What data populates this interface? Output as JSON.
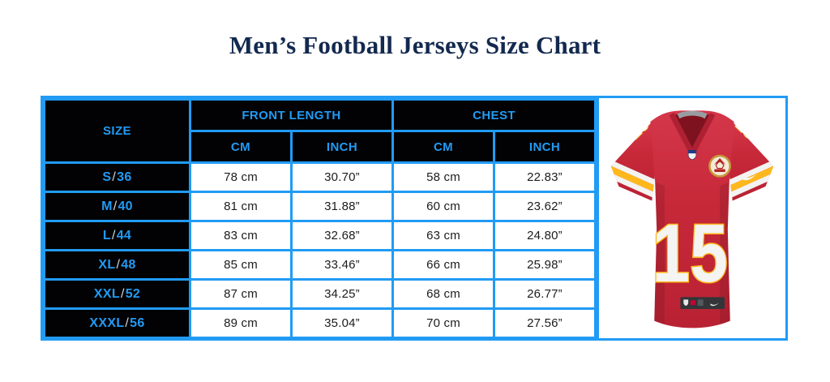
{
  "title": "Men’s Football Jerseys Size Chart",
  "colors": {
    "accent_blue": "#219bf4",
    "title_navy": "#13294e",
    "header_bg": "#000000",
    "cell_text": "#1c1c1e",
    "jersey_red": "#c62838",
    "jersey_gold": "#ffb81c"
  },
  "table": {
    "headers": {
      "size": "SIZE",
      "front_length": "FRONT LENGTH",
      "chest": "CHEST",
      "front_cm": "CM",
      "front_inch": "INCH",
      "chest_cm": "CM",
      "chest_inch": "INCH"
    },
    "rows": [
      {
        "size": "S/36",
        "front_cm": "78 cm",
        "front_inch": "30.70”",
        "chest_cm": "58 cm",
        "chest_inch": "22.83”"
      },
      {
        "size": "M/40",
        "front_cm": "81 cm",
        "front_inch": "31.88”",
        "chest_cm": "60 cm",
        "chest_inch": "23.62”"
      },
      {
        "size": "L/44",
        "front_cm": "83 cm",
        "front_inch": "32.68”",
        "chest_cm": "63 cm",
        "chest_inch": "24.80”"
      },
      {
        "size": "XL/48",
        "front_cm": "85 cm",
        "front_inch": "33.46”",
        "chest_cm": "66 cm",
        "chest_inch": "25.98”"
      },
      {
        "size": "XXL/52",
        "front_cm": "87 cm",
        "front_inch": "34.25”",
        "chest_cm": "68 cm",
        "chest_inch": "26.77”"
      },
      {
        "size": "XXXL/56",
        "front_cm": "89 cm",
        "front_inch": "35.04”",
        "chest_cm": "70 cm",
        "chest_inch": "27.56”"
      }
    ]
  },
  "jersey": {
    "number": "15"
  },
  "chart_data": {
    "type": "table",
    "title": "Men’s Football Jerseys Size Chart",
    "column_groups": [
      "SIZE",
      "FRONT LENGTH",
      "CHEST"
    ],
    "columns": [
      "SIZE",
      "FRONT LENGTH (CM)",
      "FRONT LENGTH (INCH)",
      "CHEST (CM)",
      "CHEST (INCH)"
    ],
    "rows": [
      [
        "S/36",
        "78 cm",
        "30.70”",
        "58 cm",
        "22.83”"
      ],
      [
        "M/40",
        "81 cm",
        "31.88”",
        "60 cm",
        "23.62”"
      ],
      [
        "L/44",
        "83 cm",
        "32.68”",
        "63 cm",
        "24.80”"
      ],
      [
        "XL/48",
        "85 cm",
        "33.46”",
        "66 cm",
        "25.98”"
      ],
      [
        "XXL/52",
        "87 cm",
        "34.25”",
        "68 cm",
        "26.77”"
      ],
      [
        "XXXL/56",
        "89 cm",
        "35.04”",
        "70 cm",
        "27.56”"
      ]
    ]
  }
}
